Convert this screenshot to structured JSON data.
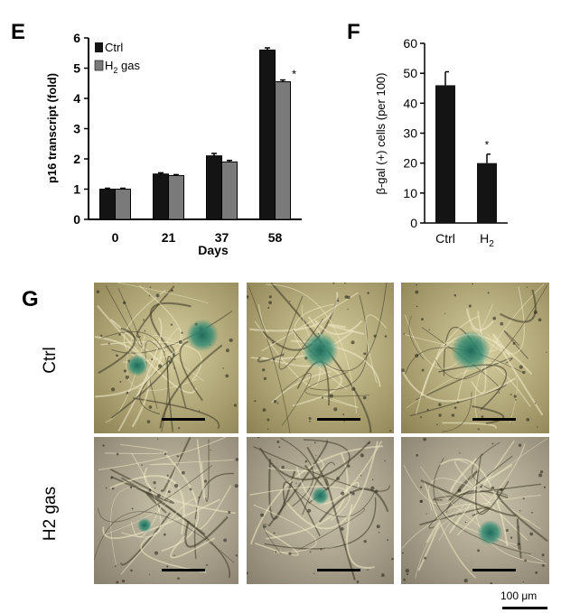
{
  "panels": {
    "e": "E",
    "f": "F",
    "g": "G"
  },
  "colors": {
    "ctrl": "#141414",
    "h2": "#7a7a7a",
    "axis": "#000000"
  },
  "chart_data": [
    {
      "type": "bar",
      "panel": "E",
      "ylabel": "p16 transcript (fold)",
      "xlabel": "Days",
      "categories": [
        "0",
        "21",
        "37",
        "58"
      ],
      "ylim": [
        0,
        6
      ],
      "yticks": [
        "0",
        "1",
        "2",
        "3",
        "4",
        "5",
        "6"
      ],
      "legend": {
        "placement": "top-left",
        "ctrl": "Ctrl",
        "h2_main": "H",
        "h2_sub": "2",
        "h2_rest": " gas"
      },
      "series": [
        {
          "name": "Ctrl",
          "values": [
            1.0,
            1.5,
            2.1,
            5.6
          ],
          "errors": [
            0.03,
            0.04,
            0.08,
            0.07
          ]
        },
        {
          "name": "H2 gas",
          "values": [
            1.0,
            1.45,
            1.9,
            4.55
          ],
          "errors": [
            0.03,
            0.03,
            0.05,
            0.06
          ]
        }
      ],
      "annotations": [
        {
          "category": "58",
          "series": "H2 gas",
          "text": "*"
        }
      ]
    },
    {
      "type": "bar",
      "panel": "F",
      "ylabel": "β-gal (+) cells (per 100)",
      "xlabel": "",
      "categories": [
        "Ctrl",
        "H2"
      ],
      "category_labels": [
        {
          "main": "Ctrl",
          "sub": ""
        },
        {
          "main": "H",
          "sub": "2"
        }
      ],
      "ylim": [
        0,
        60
      ],
      "yticks": [
        "0",
        "10",
        "20",
        "30",
        "40",
        "50",
        "60"
      ],
      "series": [
        {
          "name": "",
          "values": [
            46,
            20
          ],
          "errors": [
            4.5,
            3
          ]
        }
      ],
      "annotations": [
        {
          "category": "H2",
          "text": "*"
        }
      ]
    }
  ],
  "micrographs": {
    "row_labels": [
      "Ctrl",
      "H2 gas"
    ],
    "scale_label": "100 μm"
  }
}
